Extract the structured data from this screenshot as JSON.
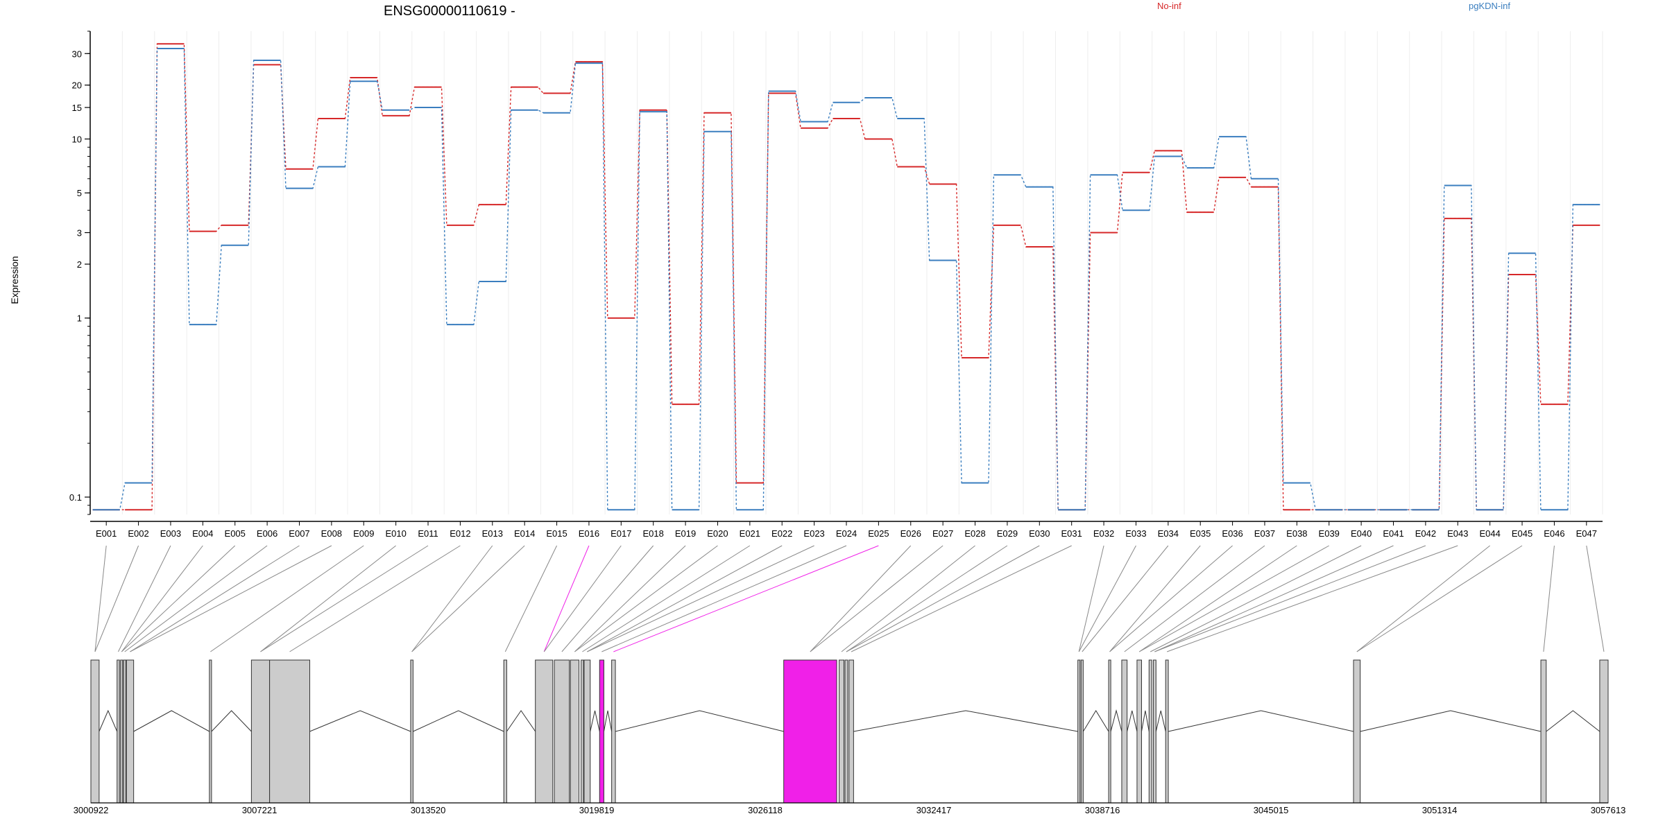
{
  "chart_data": {
    "type": "line",
    "title": "ENSG00000110619 -",
    "ylabel": "Expression",
    "y_scale": "log",
    "ylim": [
      0.08,
      40
    ],
    "y_ticks": [
      0.1,
      1,
      2,
      3,
      5,
      10,
      15,
      20,
      30
    ],
    "y_tick_labels": [
      "0.1",
      "1",
      "2",
      "3",
      "5",
      "10",
      "15",
      "20",
      "30"
    ],
    "legend_position": "top",
    "categories": [
      "E001",
      "E002",
      "E003",
      "E004",
      "E005",
      "E006",
      "E007",
      "E008",
      "E009",
      "E010",
      "E011",
      "E012",
      "E013",
      "E014",
      "E015",
      "E016",
      "E017",
      "E018",
      "E019",
      "E020",
      "E021",
      "E022",
      "E023",
      "E024",
      "E025",
      "E026",
      "E027",
      "E028",
      "E029",
      "E030",
      "E031",
      "E032",
      "E033",
      "E034",
      "E035",
      "E036",
      "E037",
      "E038",
      "E039",
      "E040",
      "E041",
      "E042",
      "E043",
      "E044",
      "E045",
      "E046",
      "E047"
    ],
    "series": [
      {
        "name": "No-inf",
        "color": "#d62728",
        "values": [
          0.085,
          0.085,
          34,
          3.05,
          3.3,
          26,
          6.8,
          13,
          22,
          13.5,
          19.5,
          3.3,
          4.3,
          19.5,
          18,
          27,
          1.0,
          14.5,
          0.33,
          14,
          0.12,
          18,
          11.5,
          13,
          10,
          7.0,
          5.6,
          0.6,
          3.3,
          2.5,
          0.085,
          3.0,
          6.5,
          8.6,
          3.9,
          6.1,
          5.4,
          0.085,
          0.085,
          0.085,
          0.085,
          0.085,
          3.6,
          0.085,
          1.75,
          0.33,
          3.3
        ]
      },
      {
        "name": "pgKDN-inf",
        "color": "#3a7ebf",
        "values": [
          0.085,
          0.12,
          32,
          0.92,
          2.55,
          27.5,
          5.3,
          7.0,
          21,
          14.5,
          15,
          0.92,
          1.6,
          14.5,
          14,
          26.5,
          0.085,
          14.2,
          0.085,
          11,
          0.085,
          18.5,
          12.5,
          16,
          17,
          13,
          2.1,
          0.12,
          6.3,
          5.4,
          0.085,
          6.3,
          4.0,
          8.0,
          6.9,
          10.3,
          6.0,
          0.12,
          0.085,
          0.085,
          0.085,
          0.085,
          5.5,
          0.085,
          2.3,
          0.085,
          4.3
        ]
      }
    ],
    "gene_model": {
      "coordinate_ticks": [
        3000922,
        3007221,
        3013520,
        3019819,
        3026118,
        3032417,
        3038716,
        3045015,
        3051314,
        3057613
      ],
      "coordinate_tick_labels": [
        "3000922",
        "3007221",
        "3013520",
        "3019819",
        "3026118",
        "3032417",
        "3038716",
        "3045015",
        "3051314",
        "3057613"
      ],
      "range": [
        3000922,
        3057613
      ],
      "highlight_color": "#f020e8",
      "highlighted_exons": [
        "E016",
        "E025"
      ],
      "exon_fill": "#cccccc",
      "exons": [
        [
          3000922,
          3001230
        ],
        [
          3001900,
          3001990
        ],
        [
          3002030,
          3002110
        ],
        [
          3002140,
          3002230
        ],
        [
          3002250,
          3002520
        ],
        [
          3005350,
          3005430
        ],
        [
          3006920,
          3007600
        ],
        [
          3007600,
          3009100
        ],
        [
          3012870,
          3012960
        ],
        [
          3016350,
          3016460
        ],
        [
          3017530,
          3018180
        ],
        [
          3018240,
          3018800
        ],
        [
          3018840,
          3019160
        ],
        [
          3019240,
          3019330
        ],
        [
          3019350,
          3019580
        ],
        [
          3019930,
          3020090
        ],
        [
          3020380,
          3020520
        ],
        [
          3026810,
          3028790
        ],
        [
          3028880,
          3029060
        ],
        [
          3029100,
          3029200
        ],
        [
          3029250,
          3029420
        ],
        [
          3037800,
          3037880
        ],
        [
          3037920,
          3038000
        ],
        [
          3038950,
          3039030
        ],
        [
          3039440,
          3039640
        ],
        [
          3040010,
          3040180
        ],
        [
          3040460,
          3040560
        ],
        [
          3040620,
          3040720
        ],
        [
          3041080,
          3041180
        ],
        [
          3048100,
          3048350
        ],
        [
          3055100,
          3055300
        ],
        [
          3057300,
          3057613
        ]
      ]
    }
  }
}
